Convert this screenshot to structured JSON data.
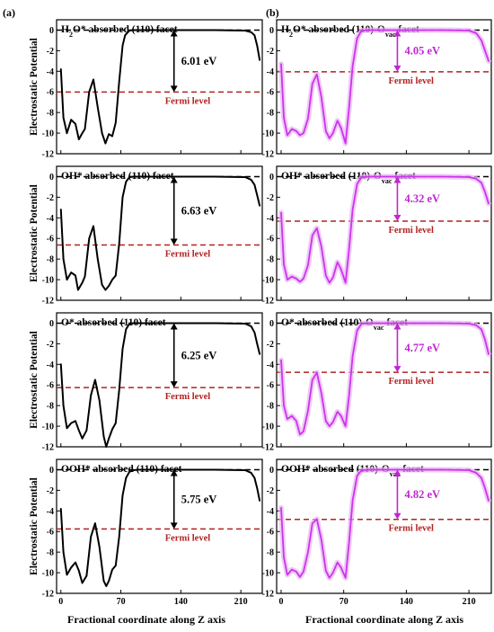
{
  "figure": {
    "col_labels": [
      "(a)",
      "(b)"
    ],
    "ylabel": "Electrostatic Potential",
    "xlabel": "Fractional coordinate along Z axis",
    "fermi_label": "Fermi level",
    "colors": {
      "left_curve": "#000000",
      "right_curve": "#cc33ee",
      "right_glow": "#e8b4f4",
      "fermi_line": "#b22222",
      "fermi_text": "#b22222",
      "vacuum_line": "#000000",
      "left_arrow": "#000000",
      "right_arrow": "#c026d3"
    }
  },
  "chart_data": [
    {
      "type": "line",
      "column": 0,
      "row": 0,
      "title_parts": [
        [
          "H",
          ""
        ],
        [
          "2",
          "sub"
        ],
        [
          "O* absorbed (110) facet",
          ""
        ]
      ],
      "xticks": [
        0,
        70,
        140,
        210
      ],
      "yticks": [
        0,
        -2,
        -4,
        -6,
        -8,
        -10,
        -12
      ],
      "xlim": [
        -5,
        235
      ],
      "ylim": [
        -12,
        1
      ],
      "fermi_level": -6.01,
      "vacuum_level": 0,
      "gap_label": "6.01 eV",
      "x": [
        0,
        3,
        7,
        12,
        17,
        21,
        25,
        28,
        33,
        38,
        43,
        48,
        52,
        56,
        60,
        64,
        68,
        72,
        75,
        80,
        85,
        88,
        95,
        110,
        140,
        180,
        215,
        222,
        226,
        229,
        232
      ],
      "y": [
        -3.8,
        -8.5,
        -10.0,
        -8.7,
        -9.1,
        -10.6,
        -10.0,
        -9.6,
        -6.0,
        -4.8,
        -7.5,
        -10.0,
        -11.0,
        -10.1,
        -10.3,
        -9.0,
        -5.0,
        -1.5,
        -0.5,
        -0.05,
        0,
        0,
        0,
        0,
        0,
        0,
        -0.05,
        -0.2,
        -0.5,
        -1.5,
        -2.9
      ]
    },
    {
      "type": "line",
      "column": 1,
      "row": 0,
      "title_parts": [
        [
          "H",
          ""
        ],
        [
          "2",
          "sub"
        ],
        [
          "O* absorbed (110)-O",
          ""
        ],
        [
          "vac",
          "sub"
        ],
        [
          " facet",
          ""
        ]
      ],
      "xticks": [
        0,
        70,
        140,
        210
      ],
      "yticks": [
        0,
        -2,
        -4,
        -6,
        -8,
        -10,
        -12
      ],
      "xlim": [
        -5,
        235
      ],
      "ylim": [
        -12,
        1
      ],
      "fermi_level": -4.05,
      "vacuum_level": 0,
      "gap_label": "4.05 eV",
      "x": [
        0,
        3,
        7,
        12,
        17,
        21,
        25,
        30,
        35,
        40,
        45,
        50,
        54,
        58,
        63,
        67,
        72,
        76,
        80,
        85,
        90,
        100,
        140,
        180,
        210,
        218,
        224,
        228,
        232
      ],
      "y": [
        -3.3,
        -8.5,
        -10.2,
        -9.6,
        -9.8,
        -10.2,
        -10.0,
        -8.6,
        -5.2,
        -4.3,
        -6.5,
        -9.8,
        -10.5,
        -10.0,
        -8.8,
        -9.5,
        -11.0,
        -7.5,
        -3.5,
        -0.8,
        -0.05,
        0,
        0,
        0,
        -0.05,
        -0.3,
        -1.0,
        -2.0,
        -3.0
      ]
    },
    {
      "type": "line",
      "column": 0,
      "row": 1,
      "title_parts": [
        [
          "OH* absorbed (110) facet",
          ""
        ]
      ],
      "xticks": [
        0,
        70,
        140,
        210
      ],
      "yticks": [
        0,
        -2,
        -4,
        -6,
        -8,
        -10,
        -12
      ],
      "xlim": [
        -5,
        235
      ],
      "ylim": [
        -12,
        1
      ],
      "fermi_level": -6.63,
      "vacuum_level": 0,
      "gap_label": "6.63 eV",
      "x": [
        0,
        3,
        7,
        12,
        17,
        20,
        25,
        28,
        33,
        38,
        43,
        48,
        52,
        56,
        60,
        64,
        68,
        72,
        76,
        80,
        85,
        90,
        110,
        140,
        180,
        215,
        222,
        226,
        229,
        232
      ],
      "y": [
        -3.2,
        -8.0,
        -10.0,
        -9.3,
        -9.6,
        -11.0,
        -10.3,
        -9.7,
        -6.0,
        -4.8,
        -8.0,
        -10.5,
        -11.0,
        -10.6,
        -10.0,
        -9.6,
        -6.5,
        -2.0,
        -0.5,
        -0.05,
        0,
        0,
        0,
        0,
        0,
        -0.05,
        -0.3,
        -0.8,
        -1.8,
        -2.8
      ]
    },
    {
      "type": "line",
      "column": 1,
      "row": 1,
      "title_parts": [
        [
          "OH* absorbed (110)-O",
          ""
        ],
        [
          "vac",
          "sub"
        ],
        [
          " facet",
          ""
        ]
      ],
      "xticks": [
        0,
        70,
        140,
        210
      ],
      "yticks": [
        0,
        -2,
        -4,
        -6,
        -8,
        -10,
        -12
      ],
      "xlim": [
        -5,
        235
      ],
      "ylim": [
        -12,
        1
      ],
      "fermi_level": -4.32,
      "vacuum_level": 0,
      "gap_label": "4.32 eV",
      "x": [
        0,
        3,
        7,
        12,
        17,
        21,
        25,
        30,
        35,
        40,
        45,
        50,
        54,
        58,
        63,
        67,
        72,
        76,
        80,
        85,
        90,
        100,
        140,
        180,
        210,
        218,
        224,
        228,
        232
      ],
      "y": [
        -3.5,
        -8.5,
        -10.0,
        -9.7,
        -9.9,
        -10.2,
        -9.9,
        -8.6,
        -5.7,
        -5.0,
        -6.8,
        -9.6,
        -10.3,
        -9.8,
        -8.3,
        -9.0,
        -10.3,
        -7.0,
        -3.2,
        -0.7,
        -0.05,
        0,
        0,
        0,
        -0.05,
        -0.2,
        -0.6,
        -1.5,
        -2.6
      ]
    },
    {
      "type": "line",
      "column": 0,
      "row": 2,
      "title_parts": [
        [
          "O* absorbed (110) facet",
          ""
        ]
      ],
      "xticks": [
        0,
        70,
        140,
        210
      ],
      "yticks": [
        0,
        -2,
        -4,
        -6,
        -8,
        -10,
        -12
      ],
      "xlim": [
        -5,
        235
      ],
      "ylim": [
        -12,
        1
      ],
      "fermi_level": -6.25,
      "vacuum_level": 0,
      "gap_label": "6.25 eV",
      "x": [
        0,
        3,
        7,
        12,
        17,
        21,
        25,
        30,
        35,
        40,
        45,
        50,
        53,
        56,
        60,
        64,
        68,
        72,
        76,
        80,
        85,
        90,
        110,
        140,
        180,
        215,
        222,
        226,
        229,
        232
      ],
      "y": [
        -4.0,
        -8.0,
        -10.2,
        -9.7,
        -9.5,
        -10.4,
        -11.2,
        -10.4,
        -7.0,
        -5.5,
        -7.5,
        -11.0,
        -12.0,
        -11.2,
        -10.3,
        -9.7,
        -6.5,
        -2.5,
        -0.6,
        -0.05,
        0,
        0,
        0,
        0,
        0,
        -0.05,
        -0.3,
        -0.9,
        -2.0,
        -3.0
      ]
    },
    {
      "type": "line",
      "column": 1,
      "row": 2,
      "title_parts": [
        [
          "O* absorbed (110)-O",
          ""
        ],
        [
          "vac",
          "sub"
        ],
        [
          " facet",
          ""
        ]
      ],
      "xticks": [
        0,
        70,
        140,
        210
      ],
      "yticks": [
        0,
        -2,
        -4,
        -6,
        -8,
        -10,
        -12
      ],
      "xlim": [
        -5,
        235
      ],
      "ylim": [
        -12,
        1
      ],
      "fermi_level": -4.77,
      "vacuum_level": 0,
      "gap_label": "4.77 eV",
      "x": [
        0,
        3,
        7,
        12,
        17,
        21,
        25,
        30,
        35,
        40,
        45,
        50,
        54,
        58,
        63,
        67,
        72,
        76,
        80,
        85,
        90,
        100,
        140,
        180,
        210,
        218,
        224,
        228,
        232
      ],
      "y": [
        -3.6,
        -8.0,
        -9.3,
        -9.0,
        -9.5,
        -10.8,
        -10.5,
        -8.5,
        -5.5,
        -4.8,
        -6.8,
        -9.5,
        -10.0,
        -9.6,
        -8.6,
        -9.0,
        -10.0,
        -7.0,
        -3.2,
        -0.7,
        -0.05,
        0,
        0,
        0,
        -0.05,
        -0.2,
        -0.6,
        -1.6,
        -3.0
      ]
    },
    {
      "type": "line",
      "column": 0,
      "row": 3,
      "title_parts": [
        [
          "OOH* absorbed (110) facet",
          ""
        ]
      ],
      "xticks": [
        0,
        70,
        140,
        210
      ],
      "yticks": [
        0,
        -2,
        -4,
        -6,
        -8,
        -10,
        -12
      ],
      "xlim": [
        -5,
        235
      ],
      "ylim": [
        -12,
        1
      ],
      "fermi_level": -5.75,
      "vacuum_level": 0,
      "gap_label": "5.75 eV",
      "x": [
        0,
        3,
        7,
        12,
        17,
        21,
        25,
        30,
        35,
        40,
        45,
        50,
        53,
        56,
        60,
        64,
        68,
        72,
        76,
        80,
        85,
        90,
        110,
        140,
        180,
        215,
        222,
        226,
        229,
        232
      ],
      "y": [
        -3.8,
        -8.0,
        -10.2,
        -9.5,
        -9.0,
        -9.8,
        -11.0,
        -10.3,
        -6.5,
        -5.2,
        -7.5,
        -10.8,
        -11.3,
        -10.8,
        -9.7,
        -9.3,
        -6.5,
        -2.5,
        -0.8,
        -0.2,
        -0.05,
        0,
        0,
        0,
        0,
        -0.05,
        -0.3,
        -0.8,
        -1.8,
        -3.0
      ]
    },
    {
      "type": "line",
      "column": 1,
      "row": 3,
      "title_parts": [
        [
          "OOH* absorbed (110)-O",
          ""
        ],
        [
          "vac",
          "sub"
        ],
        [
          " facet",
          ""
        ]
      ],
      "xticks": [
        0,
        70,
        140,
        210
      ],
      "yticks": [
        0,
        -2,
        -4,
        -6,
        -8,
        -10,
        -12
      ],
      "xlim": [
        -5,
        235
      ],
      "ylim": [
        -12,
        1
      ],
      "fermi_level": -4.82,
      "vacuum_level": 0,
      "gap_label": "4.82 eV",
      "x": [
        0,
        3,
        7,
        12,
        17,
        21,
        25,
        30,
        35,
        40,
        45,
        50,
        54,
        58,
        63,
        67,
        72,
        76,
        80,
        85,
        90,
        100,
        140,
        180,
        210,
        218,
        224,
        228,
        232
      ],
      "y": [
        -3.7,
        -8.5,
        -10.2,
        -9.7,
        -9.9,
        -10.4,
        -9.9,
        -8.0,
        -5.2,
        -4.8,
        -6.8,
        -9.8,
        -10.5,
        -10.0,
        -9.0,
        -9.5,
        -10.5,
        -7.0,
        -3.0,
        -0.6,
        -0.05,
        0,
        0,
        0,
        -0.05,
        -0.3,
        -0.8,
        -1.8,
        -3.0
      ]
    }
  ]
}
